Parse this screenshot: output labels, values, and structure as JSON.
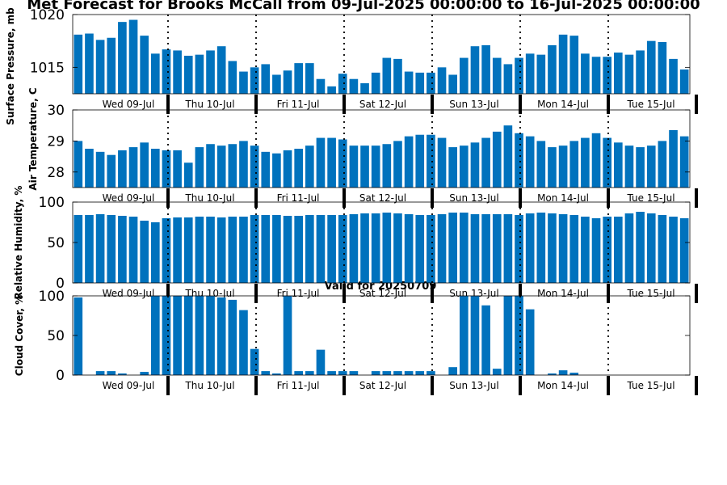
{
  "title": "Met Forecast for Brooks McCall from 09-Jul-2025 00:00:00 to 16-Jul-2025 00:00:00",
  "subtitle": "Valid for 20250709",
  "colors": {
    "bar": "#0072BD",
    "axis": "#000000",
    "background": "#ffffff"
  },
  "chart_data": [
    {
      "type": "bar",
      "ylabel": "Surface Pressure, mb",
      "ylim": [
        1012.5,
        1020
      ],
      "yticks": [
        1015,
        1020
      ],
      "day_labels": [
        "Wed 09-Jul",
        "Thu 10-Jul",
        "Fri 11-Jul",
        "Sat 12-Jul",
        "Sun 13-Jul",
        "Mon 14-Jul",
        "Tue 15-Jul"
      ],
      "values": [
        1018.1,
        1018.2,
        1017.6,
        1017.8,
        1019.3,
        1019.5,
        1018.0,
        1016.3,
        1016.7,
        1016.6,
        1016.1,
        1016.2,
        1016.6,
        1017.0,
        1015.6,
        1014.6,
        1015.0,
        1015.3,
        1014.3,
        1014.7,
        1015.4,
        1015.4,
        1013.9,
        1013.2,
        1014.4,
        1013.9,
        1013.5,
        1014.5,
        1015.9,
        1015.8,
        1014.6,
        1014.5,
        1014.5,
        1015.0,
        1014.3,
        1015.9,
        1017.0,
        1017.1,
        1015.9,
        1015.3,
        1015.9,
        1016.3,
        1016.2,
        1017.1,
        1018.1,
        1018.0,
        1016.3,
        1016.0,
        1016.0,
        1016.4,
        1016.2,
        1016.6,
        1017.5,
        1017.4,
        1015.8,
        1014.8
      ]
    },
    {
      "type": "bar",
      "ylabel": "Air Temperature, C",
      "ylim": [
        27.5,
        30
      ],
      "yticks": [
        28,
        29,
        30
      ],
      "day_labels": [
        "Wed 09-Jul",
        "Thu 10-Jul",
        "Fri 11-Jul",
        "Sat 12-Jul",
        "Sun 13-Jul",
        "Mon 14-Jul",
        "Tue 15-Jul"
      ],
      "values": [
        29.0,
        28.75,
        28.65,
        28.55,
        28.7,
        28.8,
        28.95,
        28.75,
        28.7,
        28.7,
        28.3,
        28.8,
        28.9,
        28.85,
        28.9,
        29.0,
        28.85,
        28.65,
        28.6,
        28.7,
        28.75,
        28.85,
        29.1,
        29.1,
        29.05,
        28.85,
        28.85,
        28.85,
        28.9,
        29.0,
        29.15,
        29.2,
        29.2,
        29.1,
        28.8,
        28.85,
        28.95,
        29.1,
        29.3,
        29.5,
        29.25,
        29.15,
        29.0,
        28.8,
        28.85,
        29.0,
        29.1,
        29.25,
        29.1,
        28.95,
        28.85,
        28.8,
        28.85,
        29.0,
        29.35,
        29.15
      ]
    },
    {
      "type": "bar",
      "ylabel": "Relative Humidity, %",
      "ylim": [
        0,
        100
      ],
      "yticks": [
        0,
        50,
        100
      ],
      "day_labels": [
        "Wed 09-Jul",
        "Thu 10-Jul",
        "Fri 11-Jul",
        "Sat 12-Jul",
        "Sun 13-Jul",
        "Mon 14-Jul",
        "Tue 15-Jul"
      ],
      "values": [
        84,
        84,
        85,
        84,
        83,
        82,
        77,
        75,
        80,
        81,
        81,
        82,
        82,
        81,
        82,
        82,
        84,
        84,
        84,
        83,
        83,
        84,
        84,
        84,
        84,
        85,
        86,
        86,
        87,
        86,
        85,
        84,
        84,
        85,
        87,
        87,
        85,
        85,
        85,
        85,
        84,
        86,
        87,
        86,
        85,
        84,
        82,
        80,
        82,
        82,
        86,
        88,
        86,
        84,
        82,
        80
      ]
    },
    {
      "type": "bar",
      "ylabel": "Cloud Cover, %",
      "ylim": [
        0,
        100
      ],
      "yticks": [
        0,
        50,
        100
      ],
      "day_labels": [
        "Wed 09-Jul",
        "Thu 10-Jul",
        "Fri 11-Jul",
        "Sat 12-Jul",
        "Sun 13-Jul",
        "Mon 14-Jul",
        "Tue 15-Jul"
      ],
      "values": [
        98,
        0,
        5,
        5,
        2,
        0,
        4,
        100,
        100,
        100,
        100,
        100,
        100,
        98,
        95,
        82,
        33,
        5,
        2,
        100,
        5,
        5,
        32,
        5,
        5,
        5,
        0,
        5,
        5,
        5,
        5,
        5,
        5,
        0,
        10,
        100,
        100,
        88,
        8,
        100,
        100,
        83,
        0,
        2,
        6,
        3,
        0,
        0,
        0,
        0,
        0,
        0,
        0,
        0,
        0,
        0
      ]
    }
  ]
}
